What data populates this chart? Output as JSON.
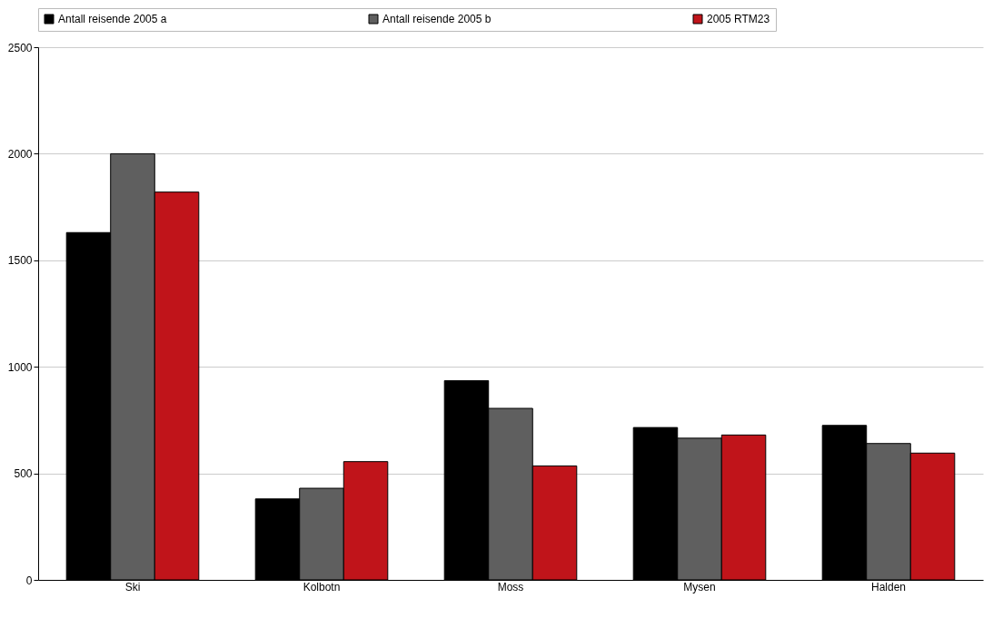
{
  "chart_data": {
    "type": "bar",
    "categories": [
      "Ski",
      "Kolbotn",
      "Moss",
      "Mysen",
      "Halden"
    ],
    "series": [
      {
        "name": "Antall reisende 2005 a",
        "color": "#000000",
        "values": [
          1630,
          380,
          935,
          715,
          725
        ]
      },
      {
        "name": "Antall reisende 2005 b",
        "color": "#5f5f5f",
        "values": [
          2000,
          430,
          805,
          665,
          640
        ]
      },
      {
        "name": "2005 RTM23",
        "color": "#c0141a",
        "values": [
          1820,
          555,
          535,
          680,
          595
        ]
      }
    ],
    "ylim": [
      0,
      2500
    ],
    "yticks": [
      0,
      500,
      1000,
      1500,
      2000,
      2500
    ],
    "grid": "y",
    "legend": "top"
  }
}
